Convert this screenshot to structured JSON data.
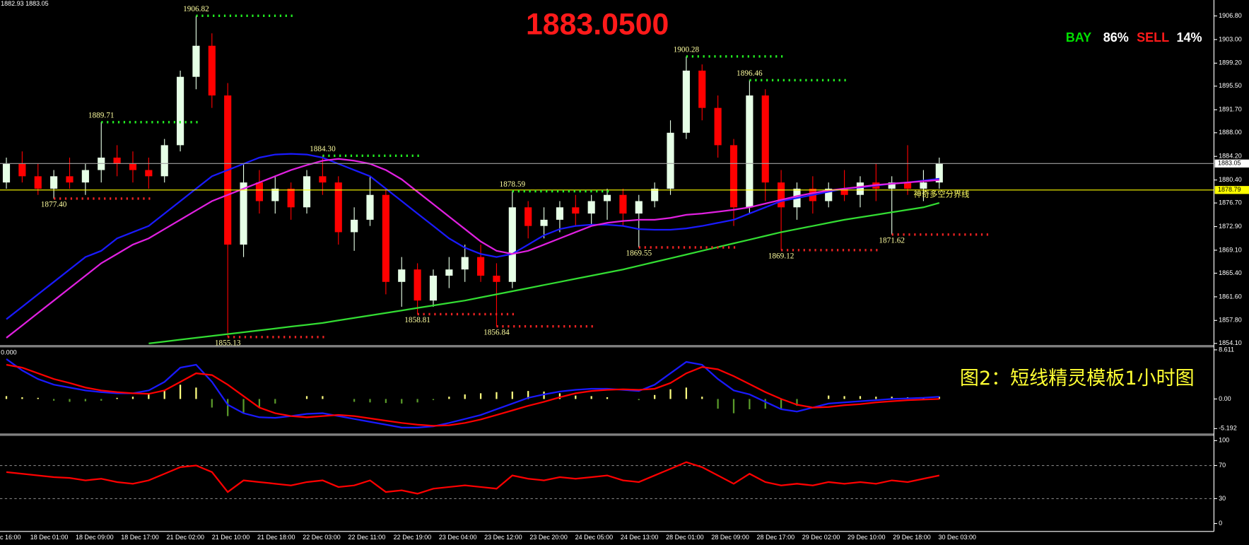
{
  "chart_data": [
    {
      "type": "candlestick",
      "title": "1883.0500",
      "quote": "1882.93 1883.05",
      "sentiment": {
        "buy_label": "BAY",
        "buy_pct": "86%",
        "sell_label": "SELL",
        "sell_pct": "14%"
      },
      "caption": "图2：短线精灵模板1小时图",
      "ylim": [
        1854.1,
        1906.8
      ],
      "yticks": [
        {
          "value": 1854.1,
          "label": "1854.10"
        },
        {
          "value": 1857.8,
          "label": "1857.80"
        },
        {
          "value": 1861.6,
          "label": "1861.60"
        },
        {
          "value": 1865.4,
          "label": "1865.40"
        },
        {
          "value": 1869.1,
          "label": "1869.10"
        },
        {
          "value": 1872.9,
          "label": "1872.90"
        },
        {
          "value": 1876.7,
          "label": "1876.70"
        },
        {
          "value": 1880.4,
          "label": "1880.40"
        },
        {
          "value": 1884.2,
          "label": "1884.20"
        },
        {
          "value": 1888,
          "label": "1888.00"
        },
        {
          "value": 1891.7,
          "label": "1891.70"
        },
        {
          "value": 1895.5,
          "label": "1895.50"
        },
        {
          "value": 1899.2,
          "label": "1899.20"
        },
        {
          "value": 1903,
          "label": "1903.00"
        },
        {
          "value": 1906.8,
          "label": "1906.80"
        }
      ],
      "x_labels": [
        "c 16:00",
        "18 Dec 01:00",
        "18 Dec 09:00",
        "18 Dec 17:00",
        "21 Dec 02:00",
        "21 Dec 10:00",
        "21 Dec 18:00",
        "22 Dec 03:00",
        "22 Dec 11:00",
        "22 Dec 19:00",
        "23 Dec 04:00",
        "23 Dec 12:00",
        "23 Dec 20:00",
        "24 Dec 05:00",
        "24 Dec 13:00",
        "28 Dec 01:00",
        "28 Dec 09:00",
        "28 Dec 17:00",
        "29 Dec 02:00",
        "29 Dec 10:00",
        "29 Dec 18:00",
        "30 Dec 03:00"
      ],
      "up_color": "#e6ffe6",
      "down_color": "#ff0000",
      "ohlc": [
        [
          1880,
          1884,
          1879,
          1883
        ],
        [
          1883,
          1885,
          1880,
          1881
        ],
        [
          1881,
          1883,
          1878,
          1879
        ],
        [
          1879,
          1882,
          1877.4,
          1881
        ],
        [
          1881,
          1884,
          1879,
          1880
        ],
        [
          1880,
          1883,
          1878,
          1882
        ],
        [
          1882,
          1889.71,
          1880,
          1884
        ],
        [
          1884,
          1886,
          1881,
          1883
        ],
        [
          1883,
          1885,
          1880,
          1882
        ],
        [
          1882,
          1884,
          1879,
          1881
        ],
        [
          1881,
          1887,
          1880,
          1886
        ],
        [
          1886,
          1898,
          1885,
          1897
        ],
        [
          1897,
          1906.82,
          1895,
          1902
        ],
        [
          1902,
          1904,
          1892,
          1894
        ],
        [
          1894,
          1896,
          1855.13,
          1870
        ],
        [
          1870,
          1883,
          1868,
          1880
        ],
        [
          1880,
          1882,
          1875,
          1877
        ],
        [
          1877,
          1881,
          1875,
          1879
        ],
        [
          1879,
          1880,
          1874,
          1876
        ],
        [
          1876,
          1882,
          1875,
          1881
        ],
        [
          1881,
          1884.3,
          1878,
          1880
        ],
        [
          1880,
          1881,
          1870,
          1872
        ],
        [
          1872,
          1876,
          1869,
          1874
        ],
        [
          1874,
          1881,
          1873,
          1878
        ],
        [
          1878,
          1879,
          1862,
          1864
        ],
        [
          1864,
          1868,
          1860,
          1866
        ],
        [
          1866,
          1867,
          1858.81,
          1861
        ],
        [
          1861,
          1866,
          1860,
          1865
        ],
        [
          1865,
          1868,
          1863,
          1866
        ],
        [
          1866,
          1870,
          1864,
          1868
        ],
        [
          1868,
          1870,
          1864,
          1865
        ],
        [
          1865,
          1867,
          1856.84,
          1864
        ],
        [
          1864,
          1878.59,
          1863,
          1876
        ],
        [
          1876,
          1877,
          1871,
          1873
        ],
        [
          1873,
          1876,
          1871,
          1874
        ],
        [
          1874,
          1877,
          1872,
          1876
        ],
        [
          1876,
          1878,
          1873,
          1875
        ],
        [
          1875,
          1878,
          1873,
          1877
        ],
        [
          1877,
          1879,
          1874,
          1878
        ],
        [
          1878,
          1879,
          1873,
          1875
        ],
        [
          1875,
          1878,
          1869.55,
          1877
        ],
        [
          1877,
          1880,
          1876,
          1879
        ],
        [
          1879,
          1890,
          1878,
          1888
        ],
        [
          1888,
          1900.28,
          1887,
          1898
        ],
        [
          1898,
          1899,
          1890,
          1892
        ],
        [
          1892,
          1894,
          1884,
          1886
        ],
        [
          1886,
          1887,
          1873,
          1876
        ],
        [
          1876,
          1896.46,
          1875,
          1894
        ],
        [
          1894,
          1895,
          1877,
          1880
        ],
        [
          1880,
          1882,
          1869.12,
          1876
        ],
        [
          1876,
          1880,
          1874,
          1879
        ],
        [
          1879,
          1881,
          1875,
          1877
        ],
        [
          1877,
          1880,
          1876,
          1879
        ],
        [
          1879,
          1882,
          1877,
          1878
        ],
        [
          1878,
          1881,
          1876,
          1880
        ],
        [
          1880,
          1883,
          1877,
          1879
        ],
        [
          1879,
          1881,
          1871.62,
          1880
        ],
        [
          1880,
          1886,
          1878,
          1879
        ],
        [
          1879,
          1882,
          1877,
          1880
        ],
        [
          1880,
          1884,
          1879,
          1883.05
        ]
      ],
      "lines": [
        {
          "color": "#1a1aff",
          "values": [
            1858,
            1860,
            1862,
            1864,
            1866,
            1868,
            1869,
            1871,
            1872,
            1873,
            1875,
            1877,
            1879,
            1881,
            1882,
            1883,
            1884,
            1884.5,
            1884.6,
            1884.5,
            1884,
            1883,
            1882,
            1881,
            1879,
            1877,
            1875,
            1873,
            1871,
            1869.5,
            1868.5,
            1868,
            1868.5,
            1870,
            1871.5,
            1872.5,
            1873,
            1873.2,
            1873.2,
            1873,
            1872.5,
            1872.4,
            1872.4,
            1872.6,
            1873,
            1873.5,
            1874,
            1875,
            1876,
            1877,
            1877.5,
            1878,
            1878.5,
            1879,
            1879.2,
            1879.5,
            1879.8,
            1880,
            1880.3,
            1880.6
          ]
        },
        {
          "color": "#e020e0",
          "values": [
            1855,
            1857,
            1859,
            1861,
            1863,
            1865,
            1867,
            1868.5,
            1870,
            1871,
            1872.5,
            1874,
            1875.5,
            1877,
            1878,
            1879,
            1880,
            1881,
            1882,
            1882.8,
            1883.5,
            1883.8,
            1883.5,
            1883,
            1882,
            1880.5,
            1878.5,
            1876.5,
            1874.5,
            1872.5,
            1870.5,
            1869,
            1868.5,
            1869,
            1870,
            1871,
            1872,
            1873,
            1873.5,
            1873.8,
            1874,
            1874,
            1874.3,
            1874.8,
            1875,
            1875.3,
            1875.6,
            1876,
            1876.6,
            1877.2,
            1877.8,
            1878.3,
            1878.7,
            1879,
            1879.3,
            1879.6,
            1879.8,
            1880,
            1880.2,
            1880.4
          ]
        },
        {
          "color": "#33dd33",
          "values": [
            null,
            null,
            null,
            null,
            null,
            null,
            null,
            null,
            null,
            1854.1,
            1854.4,
            1854.7,
            1855,
            1855.3,
            1855.6,
            1855.9,
            1856.2,
            1856.5,
            1856.8,
            1857.1,
            1857.4,
            1857.8,
            1858.2,
            1858.6,
            1859,
            1859.4,
            1859.8,
            1860.2,
            1860.6,
            1861,
            1861.5,
            1862,
            1862.5,
            1863,
            1863.5,
            1864,
            1864.5,
            1865,
            1865.5,
            1866,
            1866.6,
            1867.2,
            1867.8,
            1868.4,
            1869,
            1869.6,
            1870.2,
            1870.8,
            1871.4,
            1872,
            1872.5,
            1873,
            1873.5,
            1874,
            1874.4,
            1874.8,
            1875.2,
            1875.6,
            1876,
            1876.7
          ]
        }
      ],
      "price_lines": [
        {
          "value": 1883.05,
          "label": "1883.05",
          "color": "#a0a0a0",
          "box_color": "#ffffff"
        },
        {
          "value": 1878.79,
          "label": "1878.79",
          "color": "#ffff00",
          "box_color": "#ffff00",
          "name": "神奇多空分界线"
        }
      ],
      "annotations": [
        {
          "value": 1906.82,
          "label": "1906.82",
          "index": 12,
          "kind": "resistance"
        },
        {
          "value": 1889.71,
          "label": "1889.71",
          "index": 6,
          "kind": "resistance"
        },
        {
          "value": 1884.3,
          "label": "1884.30",
          "index": 20,
          "kind": "resistance"
        },
        {
          "value": 1878.59,
          "label": "1878.59",
          "index": 32,
          "kind": "resistance"
        },
        {
          "value": 1900.28,
          "label": "1900.28",
          "index": 43,
          "kind": "resistance"
        },
        {
          "value": 1896.46,
          "label": "1896.46",
          "index": 47,
          "kind": "resistance"
        },
        {
          "value": 1877.4,
          "label": "1877.40",
          "index": 3,
          "kind": "support"
        },
        {
          "value": 1855.13,
          "label": "1855.13",
          "index": 14,
          "kind": "support"
        },
        {
          "value": 1858.81,
          "label": "1858.81",
          "index": 26,
          "kind": "support"
        },
        {
          "value": 1856.84,
          "label": "1856.84",
          "index": 31,
          "kind": "support"
        },
        {
          "value": 1869.55,
          "label": "1869.55",
          "index": 40,
          "kind": "support"
        },
        {
          "value": 1869.12,
          "label": "1869.12",
          "index": 49,
          "kind": "support"
        },
        {
          "value": 1871.62,
          "label": "1871.62",
          "index": 56,
          "kind": "support"
        }
      ]
    },
    {
      "type": "macd",
      "indicator_label": "0.000",
      "ylim": [
        -5.9,
        8.9
      ],
      "yticks": [
        8.611,
        {
          "value": 0,
          "label": "0.00"
        },
        -5.192
      ],
      "histogram": {
        "positive_color": "#ffff80",
        "negative_color": "#5a9a2a",
        "values": [
          0.5,
          0.3,
          0.2,
          -0.3,
          -0.5,
          -0.4,
          -0.3,
          0.2,
          0.4,
          0.8,
          1.5,
          2.5,
          2,
          -1.5,
          -3,
          -2.5,
          -1.5,
          -0.8,
          0,
          0.5,
          0.5,
          0,
          -0.5,
          -0.6,
          -0.7,
          -0.8,
          -0.6,
          -0.2,
          0.4,
          0.8,
          1,
          1.2,
          1.3,
          1.4,
          1.3,
          1,
          0.6,
          0.5,
          0.3,
          0,
          -0.2,
          0.7,
          1.7,
          2,
          0.4,
          -1.7,
          -2.5,
          -1.8,
          -1.7,
          -1.8,
          -1.2,
          0,
          0.6,
          0.5,
          0.5,
          0.4,
          0.4,
          0.3,
          0.3,
          0.4
        ]
      },
      "lines": [
        {
          "color": "#1a1aff",
          "values": [
            7,
            5,
            3.5,
            2.5,
            2,
            1.5,
            1.2,
            1,
            1,
            1.5,
            3,
            5.5,
            6,
            3,
            -1,
            -2.5,
            -3.2,
            -3.3,
            -3,
            -2.6,
            -2.5,
            -3,
            -3.5,
            -4,
            -4.5,
            -5,
            -5,
            -4.8,
            -4.2,
            -3.5,
            -2.8,
            -1.8,
            -0.8,
            0.2,
            0.8,
            1.3,
            1.6,
            1.8,
            1.8,
            1.6,
            1.4,
            2.5,
            4.5,
            6.5,
            6,
            3.5,
            1.5,
            0.8,
            -0.5,
            -1.8,
            -2.2,
            -1.5,
            -0.8,
            -0.6,
            -0.4,
            -0.2,
            0,
            0.1,
            0.2,
            0.4
          ]
        },
        {
          "color": "#ff0000",
          "values": [
            6,
            5.5,
            4.5,
            3.5,
            2.8,
            2,
            1.5,
            1.2,
            1,
            0.9,
            1.5,
            3,
            4.5,
            4.2,
            2.5,
            0.5,
            -1.5,
            -2.5,
            -3,
            -3.2,
            -3,
            -2.8,
            -3,
            -3.4,
            -3.8,
            -4.2,
            -4.5,
            -4.7,
            -4.6,
            -4.2,
            -3.6,
            -2.8,
            -2,
            -1.2,
            -0.5,
            0.3,
            1,
            1.4,
            1.6,
            1.7,
            1.6,
            1.8,
            2.8,
            4.5,
            5.6,
            5.2,
            4,
            2.6,
            1.2,
            0,
            -1,
            -1.5,
            -1.4,
            -1.1,
            -0.9,
            -0.6,
            -0.4,
            -0.2,
            -0.1,
            0
          ]
        }
      ]
    },
    {
      "type": "oscillator",
      "ylim": [
        0,
        100
      ],
      "yticks": [
        100,
        70,
        30,
        0
      ],
      "levels": [
        70,
        30
      ],
      "lines": [
        {
          "color": "#ff0000",
          "values": [
            62,
            60,
            58,
            56,
            55,
            52,
            54,
            50,
            48,
            52,
            60,
            68,
            70,
            62,
            38,
            52,
            50,
            48,
            46,
            50,
            52,
            44,
            46,
            52,
            38,
            40,
            36,
            42,
            44,
            46,
            44,
            42,
            58,
            54,
            52,
            56,
            54,
            56,
            58,
            52,
            50,
            58,
            66,
            74,
            68,
            58,
            48,
            60,
            50,
            46,
            48,
            46,
            50,
            48,
            50,
            48,
            52,
            50,
            54,
            58
          ]
        }
      ]
    }
  ]
}
